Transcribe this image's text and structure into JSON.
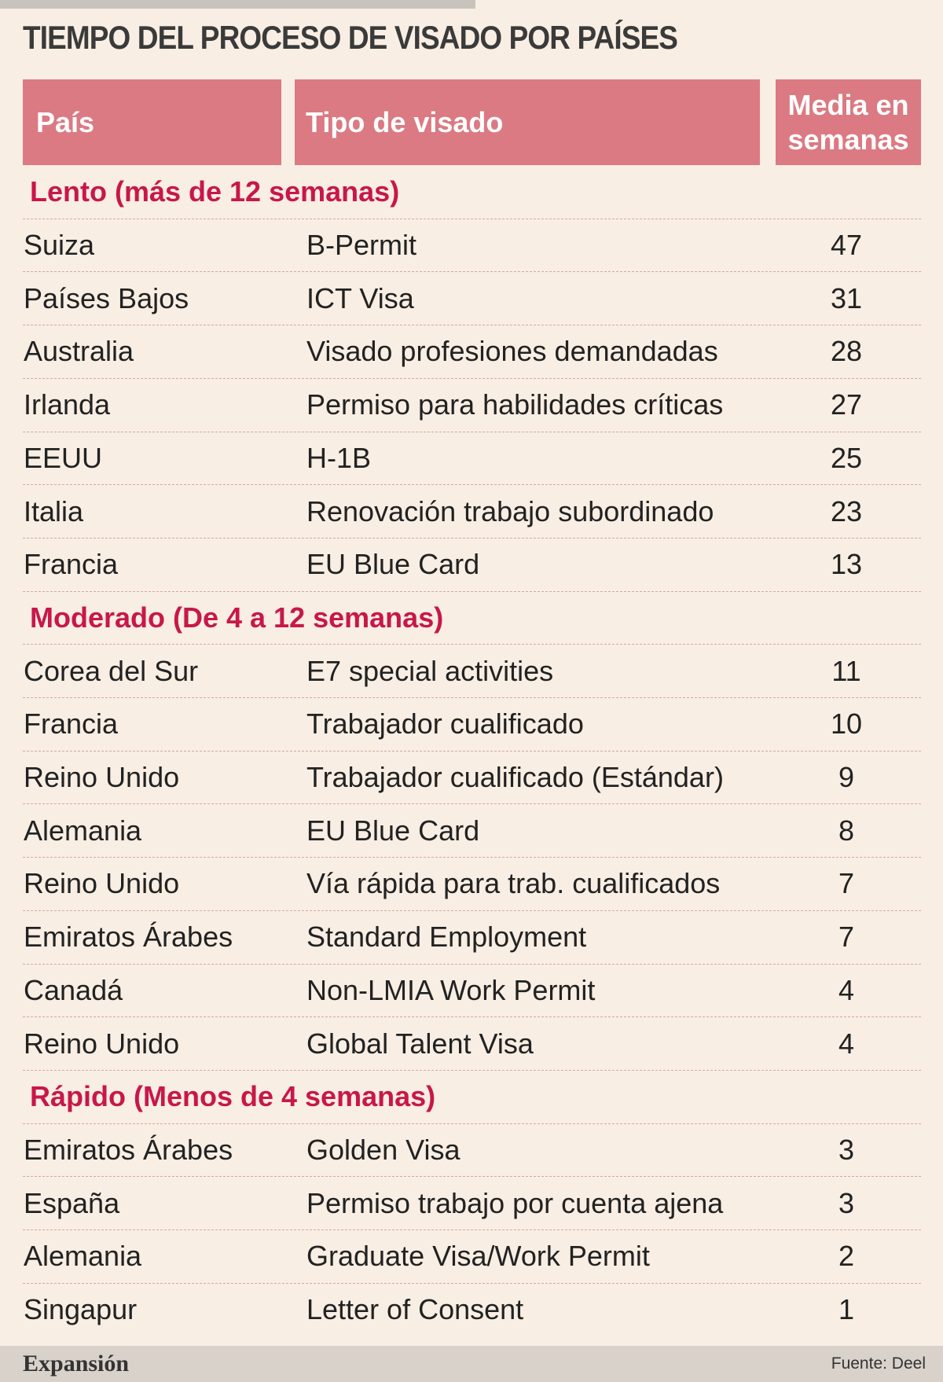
{
  "header": {
    "title": "TIEMPO DEL PROCESO DE VISADO POR PAÍSES"
  },
  "table": {
    "columns": [
      "País",
      "Tipo de visado",
      "Media en semanas"
    ],
    "groups": [
      {
        "label": "Lento (más de 12 semanas)",
        "rows": [
          [
            "Suiza",
            "B-Permit",
            47
          ],
          [
            "Países Bajos",
            "ICT Visa",
            31
          ],
          [
            "Australia",
            "Visado profesiones demandadas",
            28
          ],
          [
            "Irlanda",
            "Permiso para habilidades críticas",
            27
          ],
          [
            "EEUU",
            "H-1B",
            25
          ],
          [
            "Italia",
            "Renovación trabajo subordinado",
            23
          ],
          [
            "Francia",
            "EU Blue Card",
            13
          ]
        ]
      },
      {
        "label": "Moderado (De 4 a 12 semanas)",
        "rows": [
          [
            "Corea del Sur",
            "E7 special activities",
            11
          ],
          [
            "Francia",
            "Trabajador cualificado",
            10
          ],
          [
            "Reino Unido",
            "Trabajador cualificado (Estándar)",
            9
          ],
          [
            "Alemania",
            "EU Blue Card",
            8
          ],
          [
            "Reino Unido",
            "Vía rápida para trab. cualificados",
            7
          ],
          [
            "Emiratos Árabes",
            "Standard Employment",
            7
          ],
          [
            "Canadá",
            "Non-LMIA Work Permit",
            4
          ],
          [
            "Reino Unido",
            "Global Talent Visa",
            4
          ]
        ]
      },
      {
        "label": "Rápido (Menos de 4 semanas)",
        "rows": [
          [
            "Emiratos Árabes",
            "Golden Visa",
            3
          ],
          [
            "España",
            "Permiso trabajo por cuenta ajena",
            3
          ],
          [
            "Alemania",
            "Graduate Visa/Work Permit",
            2
          ],
          [
            "Singapur",
            "Letter of Consent",
            1
          ]
        ]
      }
    ]
  },
  "footer": {
    "brand": "Expansión",
    "source": "Fuente: Deel"
  }
}
